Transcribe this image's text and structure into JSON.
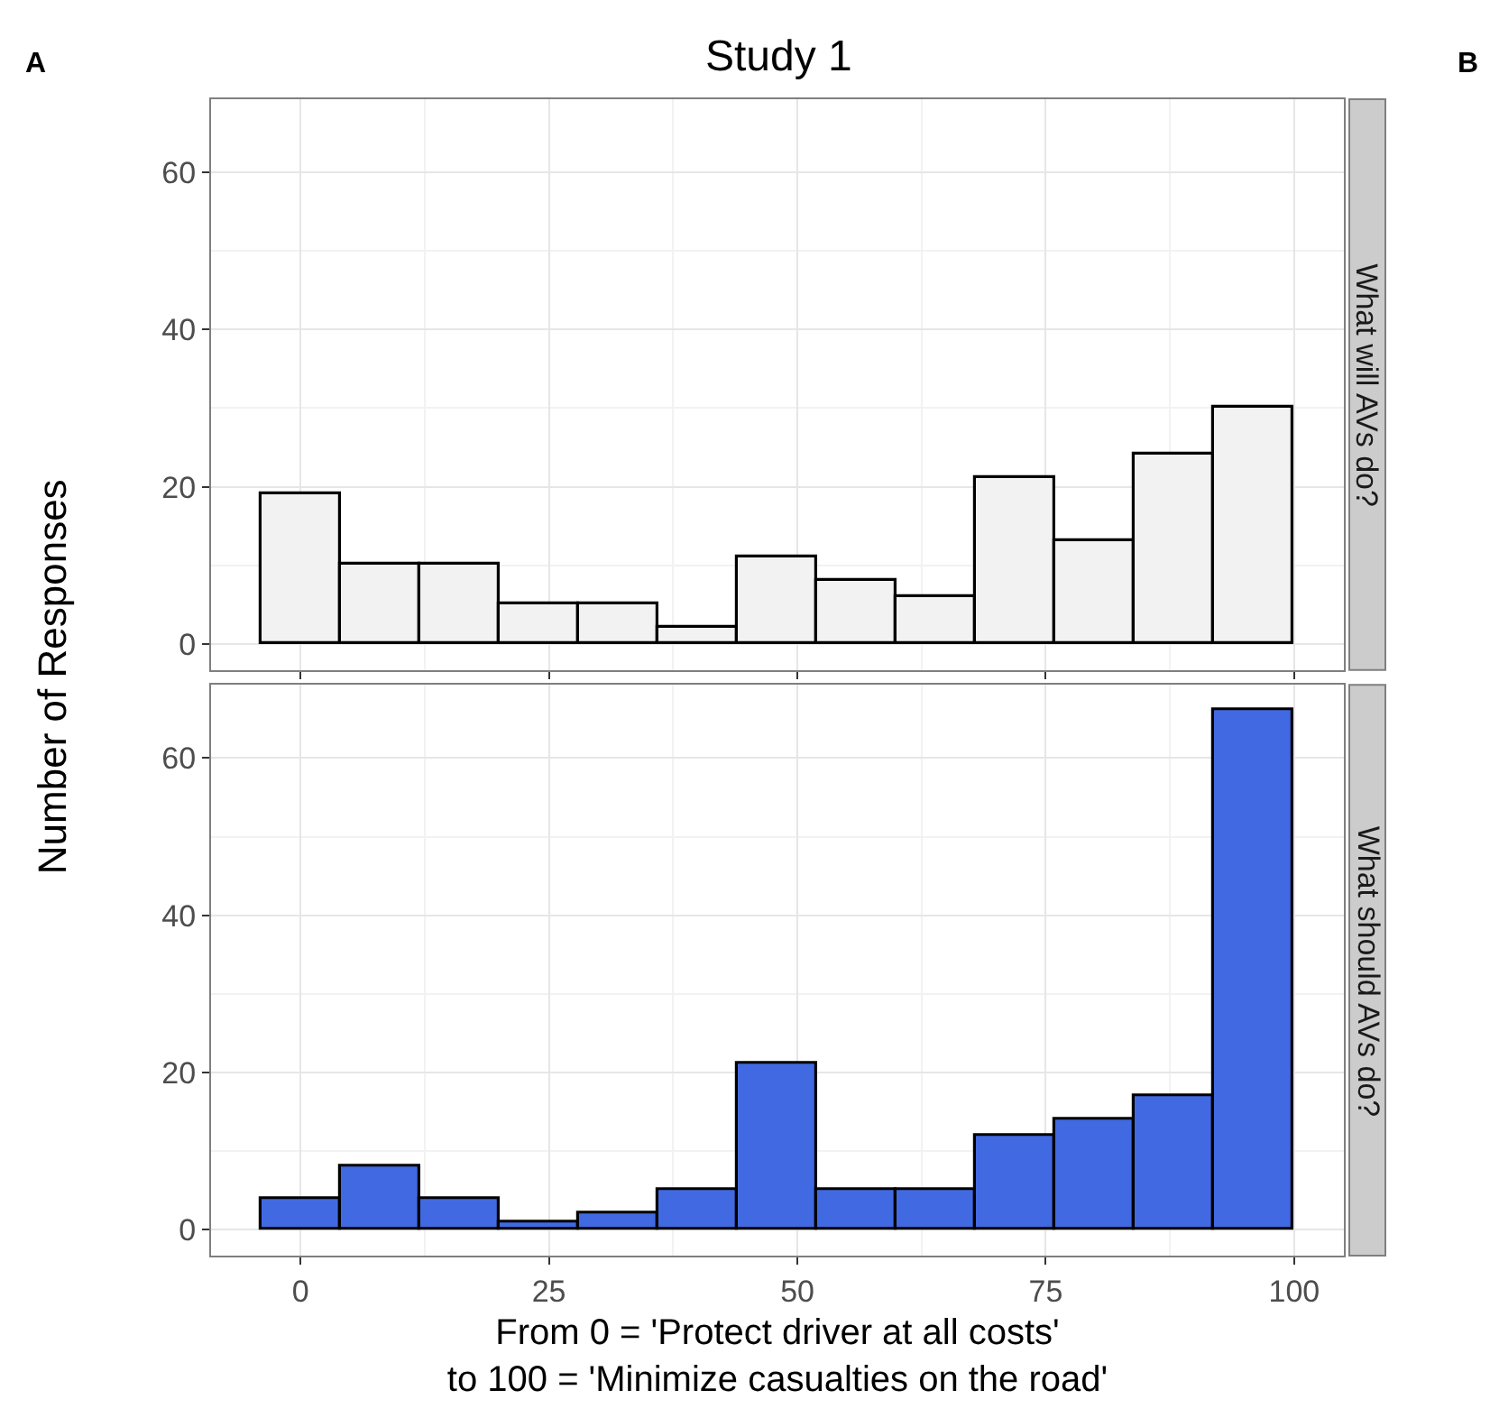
{
  "chart_data": [
    {
      "type": "histogram",
      "title": "Study 1",
      "subtitle": "What will AVs do?",
      "ylabel": "Number of Responses",
      "annotations": [
        "A",
        "B"
      ],
      "bins": [
        -4,
        4,
        12,
        20,
        28,
        36,
        44,
        52,
        60,
        68,
        76,
        84,
        92,
        100
      ],
      "values": [
        19,
        10,
        10,
        5,
        5,
        2,
        11,
        8,
        6,
        21,
        13,
        24,
        30
      ],
      "color": "#f2f2f2",
      "xlim": [
        -9,
        105
      ],
      "ylim": [
        -3.3,
        69.3
      ],
      "xticks": [
        0,
        25,
        50,
        75,
        100
      ],
      "yticks": [
        0,
        20,
        40,
        60
      ],
      "grid": true,
      "tick_labels": "y"
    },
    {
      "type": "histogram",
      "subtitle": "What should AVs do?",
      "xlabel": "From 0 = 'Protect driver at all costs'\nto 100 = 'Minimize casualties on the road'",
      "bins": [
        -4,
        4,
        12,
        20,
        28,
        36,
        44,
        52,
        60,
        68,
        76,
        84,
        92,
        100
      ],
      "values": [
        4,
        8,
        4,
        1,
        2,
        5,
        21,
        5,
        5,
        12,
        14,
        17,
        66
      ],
      "color": "#4169e1",
      "xlim": [
        -9,
        105
      ],
      "ylim": [
        -3.3,
        69.3
      ],
      "xticks": [
        0,
        25,
        50,
        75,
        100
      ],
      "yticks": [
        0,
        20,
        40,
        60
      ],
      "grid": true
    }
  ]
}
